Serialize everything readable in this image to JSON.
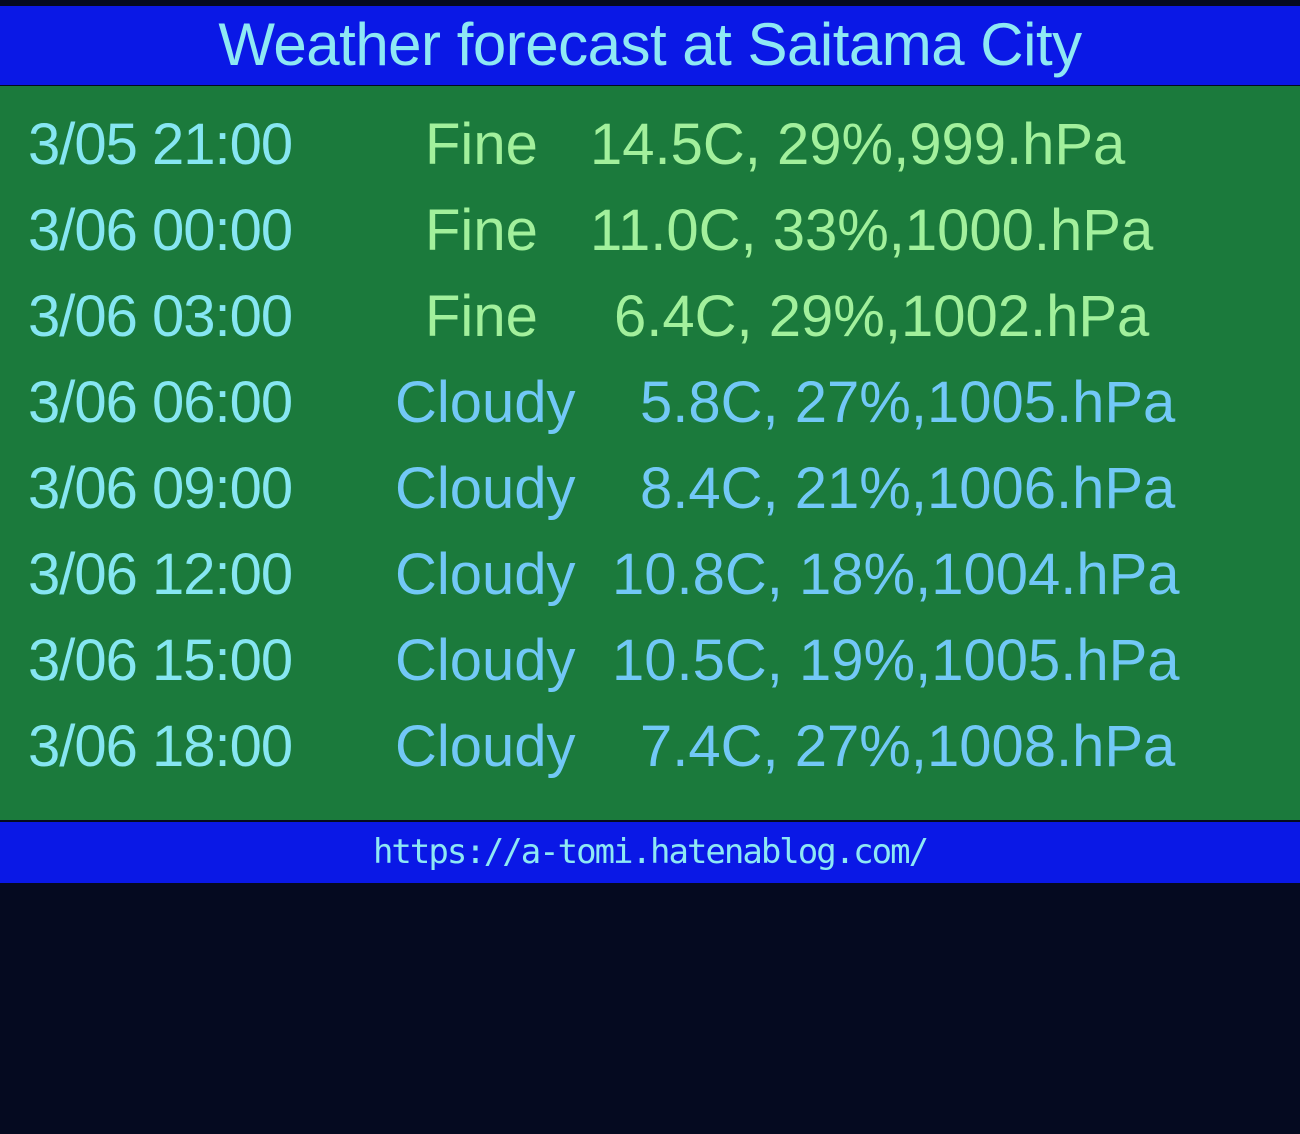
{
  "header": {
    "title": "Weather forecast at Saitama City"
  },
  "colors": {
    "header_bg": "#0a18e6",
    "main_bg": "#1b7a3c",
    "date_text": "#86e6f2",
    "fine_text": "#a2f09c",
    "cloudy_text": "#72c8f6"
  },
  "forecast": [
    {
      "datetime": "3/05 21:00",
      "condition": "Fine",
      "values": "14.5C, 29%,999.hPa"
    },
    {
      "datetime": "3/06 00:00",
      "condition": "Fine",
      "values": "11.0C, 33%,1000.hPa"
    },
    {
      "datetime": "3/06 03:00",
      "condition": "Fine",
      "values": "6.4C, 29%,1002.hPa"
    },
    {
      "datetime": "3/06 06:00",
      "condition": "Cloudy",
      "values": "5.8C, 27%,1005.hPa"
    },
    {
      "datetime": "3/06 09:00",
      "condition": "Cloudy",
      "values": "8.4C, 21%,1006.hPa"
    },
    {
      "datetime": "3/06 12:00",
      "condition": "Cloudy",
      "values": "10.8C, 18%,1004.hPa"
    },
    {
      "datetime": "3/06 15:00",
      "condition": "Cloudy",
      "values": "10.5C, 19%,1005.hPa"
    },
    {
      "datetime": "3/06 18:00",
      "condition": "Cloudy",
      "values": "7.4C, 27%,1008.hPa"
    }
  ],
  "footer": {
    "url": "https://a-tomi.hatenablog.com/"
  }
}
